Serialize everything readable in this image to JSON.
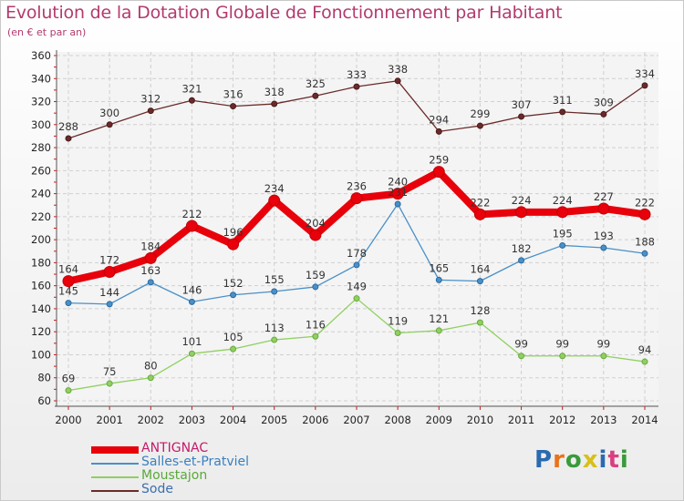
{
  "title": "Evolution de la Dotation Globale de Fonctionnement par Habitant",
  "subtitle": "(en € et par an)",
  "logo": "Proxiti",
  "logo_colors": [
    "#2a6ab0",
    "#e8731c",
    "#3a9a3a",
    "#d8c01a",
    "#2a6ab0",
    "#d94080",
    "#3a9a3a"
  ],
  "chart_data": {
    "type": "line",
    "x": [
      "2000",
      "2001",
      "2002",
      "2003",
      "2004",
      "2005",
      "2006",
      "2007",
      "2008",
      "2009",
      "2010",
      "2011",
      "2012",
      "2013",
      "2014"
    ],
    "ylim": [
      60,
      360
    ],
    "yticks": [
      60,
      80,
      100,
      120,
      140,
      160,
      180,
      200,
      220,
      240,
      260,
      280,
      300,
      320,
      340,
      360
    ],
    "grid": true,
    "legend_position": "bottom-left",
    "series": [
      {
        "name": "ANTIGNAC",
        "color": "#e8000b",
        "values": [
          164,
          172,
          184,
          212,
          196,
          234,
          204,
          236,
          240,
          259,
          222,
          224,
          224,
          227,
          222
        ]
      },
      {
        "name": "Salles-et-Pratviel",
        "color": "#4a90c8",
        "values": [
          145,
          144,
          163,
          146,
          152,
          155,
          159,
          178,
          231,
          165,
          164,
          182,
          195,
          193,
          188
        ]
      },
      {
        "name": "Moustajon",
        "color": "#8fd060",
        "values": [
          69,
          75,
          80,
          101,
          105,
          113,
          116,
          149,
          119,
          121,
          128,
          99,
          99,
          99,
          94
        ]
      },
      {
        "name": "Sode",
        "color": "#6b2a2a",
        "values": [
          288,
          300,
          312,
          321,
          316,
          318,
          325,
          333,
          338,
          294,
          299,
          307,
          311,
          309,
          334
        ]
      }
    ],
    "point_labels": [
      [
        164,
        172,
        184,
        212,
        196,
        234,
        204,
        236,
        240,
        259,
        222,
        224,
        224,
        227,
        222
      ],
      [
        145,
        144,
        163,
        146,
        152,
        155,
        159,
        178,
        231,
        165,
        164,
        182,
        195,
        193,
        188
      ],
      [
        69,
        75,
        80,
        101,
        105,
        113,
        116,
        149,
        119,
        121,
        128,
        99,
        99,
        99,
        94
      ],
      [
        288,
        300,
        312,
        321,
        316,
        318,
        325,
        333,
        338,
        294,
        299,
        307,
        311,
        309,
        334
      ]
    ]
  }
}
